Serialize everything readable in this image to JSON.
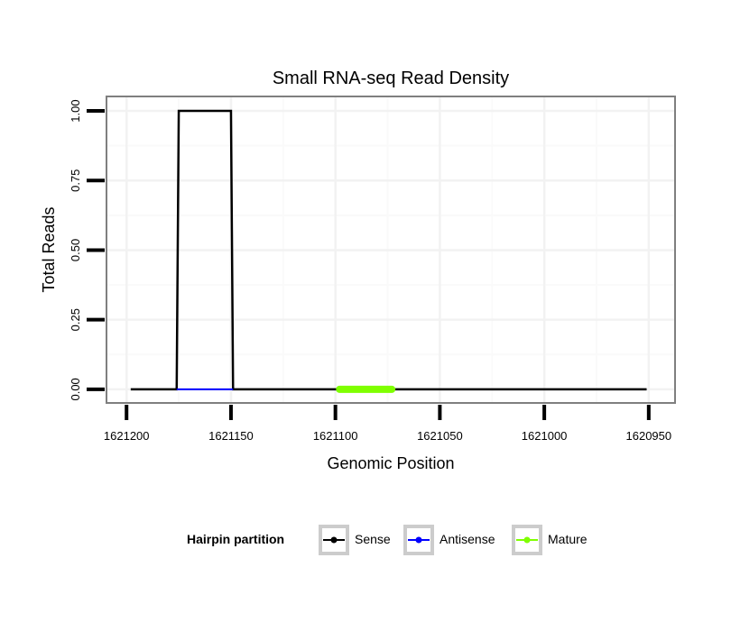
{
  "chart_data": {
    "type": "line",
    "title": "Small RNA-seq Read Density",
    "xlabel": "Genomic Position",
    "ylabel": "Total Reads",
    "xlim": [
      1621209.6,
      1620937.4
    ],
    "x_reversed": true,
    "ylim": [
      -0.049,
      1.052
    ],
    "x_ticks": [
      1621200,
      1621150,
      1621100,
      1621050,
      1621000,
      1620950
    ],
    "x_tick_labels": [
      "1621200",
      "1621150",
      "1621100",
      "1621050",
      "1621000",
      "1620950"
    ],
    "y_ticks": [
      0,
      0.25,
      0.5,
      0.75,
      1.0
    ],
    "y_tick_labels": [
      "0.00",
      "0.25",
      "0.50",
      "0.75",
      "1.00"
    ],
    "grid": true,
    "legend": {
      "title": "Hairpin partition",
      "placement": "bottom",
      "entries": [
        "Sense",
        "Antisense",
        "Mature"
      ]
    },
    "series": [
      {
        "name": "Sense",
        "color": "#000000",
        "x": [
          1621198,
          1621176,
          1621175,
          1621150,
          1621149,
          1620951
        ],
        "y": [
          0,
          0,
          1,
          1,
          0,
          0
        ]
      },
      {
        "name": "Antisense",
        "color": "#0000ff",
        "x": [
          1621176,
          1621149
        ],
        "y": [
          0,
          0
        ]
      },
      {
        "name": "Mature",
        "color": "#7fff00",
        "x": [
          1621098,
          1621073
        ],
        "y": [
          0,
          0
        ]
      }
    ]
  }
}
